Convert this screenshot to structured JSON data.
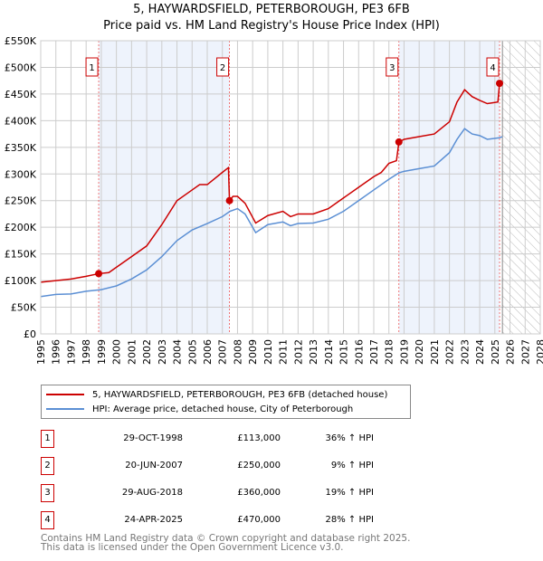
{
  "title": "5, HAYWARDSFIELD, PETERBOROUGH, PE3 6FB",
  "subtitle": "Price paid vs. HM Land Registry's House Price Index (HPI)",
  "chart_data": {
    "type": "line",
    "xlim": [
      1995,
      2028
    ],
    "ylim": [
      0,
      550000
    ],
    "yticks": [
      0,
      50000,
      100000,
      150000,
      200000,
      250000,
      300000,
      350000,
      400000,
      450000,
      500000,
      550000
    ],
    "ytick_labels": [
      "£0",
      "£50K",
      "£100K",
      "£150K",
      "£200K",
      "£250K",
      "£300K",
      "£350K",
      "£400K",
      "£450K",
      "£500K",
      "£550K"
    ],
    "xticks": [
      "1995",
      "1996",
      "1997",
      "1998",
      "1999",
      "2000",
      "2001",
      "2002",
      "2003",
      "2004",
      "2005",
      "2006",
      "2007",
      "2008",
      "2009",
      "2010",
      "2011",
      "2012",
      "2013",
      "2014",
      "2015",
      "2016",
      "2017",
      "2018",
      "2019",
      "2020",
      "2021",
      "2022",
      "2023",
      "2024",
      "2025",
      "2026",
      "2027",
      "2028"
    ],
    "grid": true,
    "forecast_hatch_from": 2025.5,
    "series": [
      {
        "name": "5, HAYWARDSFIELD, PETERBOROUGH, PE3 6FB (detached house)",
        "color": "#cc0000",
        "x": [
          1995,
          1996,
          1997,
          1998,
          1998.83,
          1999.5,
          2000,
          2001,
          2002,
          2003,
          2004,
          2005,
          2005.5,
          2006,
          2007,
          2007.4,
          2007.47,
          2007.7,
          2008,
          2008.5,
          2009.2,
          2010,
          2011,
          2011.5,
          2012,
          2013,
          2014,
          2015,
          2016,
          2017,
          2017.5,
          2018,
          2018.5,
          2018.66,
          2019,
          2020,
          2021,
          2022,
          2022.5,
          2023,
          2023.5,
          2024,
          2024.5,
          2025.2,
          2025.31,
          2025.4
        ],
        "y": [
          97000,
          100000,
          103000,
          108000,
          113000,
          115000,
          125000,
          145000,
          165000,
          205000,
          250000,
          270000,
          280000,
          280000,
          303000,
          312000,
          250000,
          258000,
          258000,
          245000,
          208000,
          222000,
          230000,
          220000,
          225000,
          225000,
          235000,
          255000,
          275000,
          295000,
          303000,
          320000,
          325000,
          360000,
          365000,
          370000,
          375000,
          398000,
          435000,
          458000,
          445000,
          438000,
          432000,
          435000,
          470000,
          470000
        ]
      },
      {
        "name": "HPI: Average price, detached house, City of Peterborough",
        "color": "#5b8fd4",
        "x": [
          1995,
          1996,
          1997,
          1998,
          1999,
          2000,
          2001,
          2002,
          2003,
          2004,
          2005,
          2006,
          2007,
          2007.5,
          2008,
          2008.5,
          2009.2,
          2010,
          2011,
          2011.5,
          2012,
          2013,
          2014,
          2015,
          2016,
          2017,
          2018,
          2018.66,
          2019,
          2020,
          2021,
          2022,
          2022.5,
          2023,
          2023.5,
          2024,
          2024.5,
          2025.3,
          2025.5
        ],
        "y": [
          70000,
          74000,
          75000,
          80000,
          83000,
          90000,
          103000,
          120000,
          145000,
          175000,
          195000,
          207000,
          220000,
          230000,
          235000,
          225000,
          190000,
          205000,
          210000,
          203000,
          207000,
          208000,
          215000,
          230000,
          250000,
          270000,
          290000,
          302000,
          305000,
          310000,
          315000,
          340000,
          365000,
          385000,
          375000,
          372000,
          365000,
          368000,
          370000
        ]
      }
    ],
    "sales": [
      {
        "n": "1",
        "x": 1998.83,
        "date": "29-OCT-1998",
        "price": 113000,
        "price_label": "£113,000",
        "hpi": "36% ↑ HPI"
      },
      {
        "n": "2",
        "x": 2007.47,
        "date": "20-JUN-2007",
        "price": 250000,
        "price_label": "£250,000",
        "hpi": "9% ↑ HPI"
      },
      {
        "n": "3",
        "x": 2018.66,
        "date": "29-AUG-2018",
        "price": 360000,
        "price_label": "£360,000",
        "hpi": "19% ↑ HPI"
      },
      {
        "n": "4",
        "x": 2025.31,
        "date": "24-APR-2025",
        "price": 470000,
        "price_label": "£470,000",
        "hpi": "28% ↑ HPI"
      }
    ]
  },
  "legend": {
    "property": "5, HAYWARDSFIELD, PETERBOROUGH, PE3 6FB (detached house)",
    "hpi": "HPI: Average price, detached house, City of Peterborough"
  },
  "footer": {
    "line1": "Contains HM Land Registry data © Crown copyright and database right 2025.",
    "line2": "This data is licensed under the Open Government Licence v3.0."
  }
}
